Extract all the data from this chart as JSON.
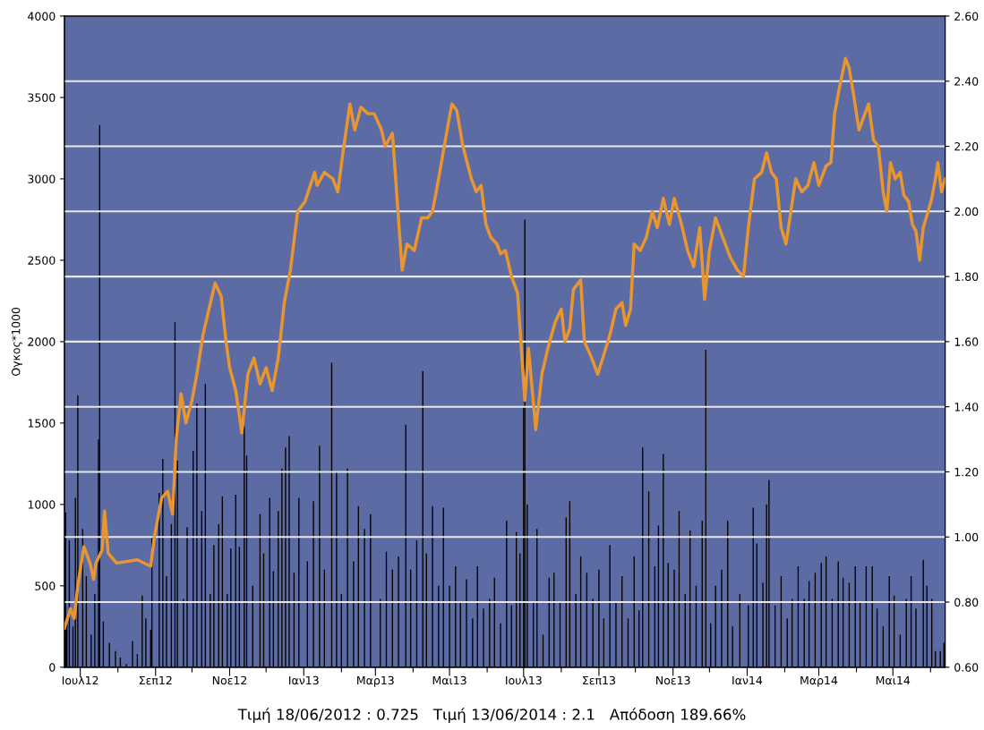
{
  "chart_data": {
    "type": "bar",
    "ylabel": "Ογκος*1000",
    "annotations": [
      "Τιμή 18/06/2012 : 0.725   Τιμή 13/06/2014 : 2.1   Απόδοση 189.66%"
    ],
    "xlim": [
      "2012-06-18",
      "2014-06-13"
    ],
    "xticks": [
      {
        "value": "2012-07-01",
        "label": "Ιουλ12"
      },
      {
        "value": "2012-08-01",
        "label": null
      },
      {
        "value": "2012-09-01",
        "label": "Σεπ12"
      },
      {
        "value": "2012-10-01",
        "label": null
      },
      {
        "value": "2012-11-01",
        "label": "Νοε12"
      },
      {
        "value": "2012-12-01",
        "label": null
      },
      {
        "value": "2013-01-01",
        "label": "Ιαν13"
      },
      {
        "value": "2013-02-01",
        "label": null
      },
      {
        "value": "2013-03-01",
        "label": "Μαρ13"
      },
      {
        "value": "2013-04-01",
        "label": null
      },
      {
        "value": "2013-05-01",
        "label": "Μαι13"
      },
      {
        "value": "2013-06-01",
        "label": null
      },
      {
        "value": "2013-07-01",
        "label": "Ιουλ13"
      },
      {
        "value": "2013-08-01",
        "label": null
      },
      {
        "value": "2013-09-01",
        "label": "Σεπ13"
      },
      {
        "value": "2013-10-01",
        "label": null
      },
      {
        "value": "2013-11-01",
        "label": "Νοε13"
      },
      {
        "value": "2013-12-01",
        "label": null
      },
      {
        "value": "2014-01-01",
        "label": "Ιαν14"
      },
      {
        "value": "2014-02-01",
        "label": null
      },
      {
        "value": "2014-03-01",
        "label": "Μαρ14"
      },
      {
        "value": "2014-04-01",
        "label": null
      },
      {
        "value": "2014-05-01",
        "label": "Μαι14"
      },
      {
        "value": "2014-06-01",
        "label": null
      }
    ],
    "ylim": [
      0,
      4000
    ],
    "yticks": [
      0,
      500,
      1000,
      1500,
      2000,
      2500,
      3000,
      3500,
      4000
    ],
    "y2lim": [
      0.6,
      2.6
    ],
    "y2ticks": [
      {
        "value": 0.6,
        "label": "0.60"
      },
      {
        "value": 0.8,
        "label": "0.80"
      },
      {
        "value": 1.0,
        "label": "1.00"
      },
      {
        "value": 1.2,
        "label": "1.20"
      },
      {
        "value": 1.4,
        "label": "1.40"
      },
      {
        "value": 1.6,
        "label": "1.60"
      },
      {
        "value": 1.8,
        "label": "1.80"
      },
      {
        "value": 2.0,
        "label": "2.00"
      },
      {
        "value": 2.2,
        "label": "2.20"
      },
      {
        "value": 2.4,
        "label": "2.40"
      },
      {
        "value": 2.6,
        "label": "2.60"
      }
    ],
    "grid": "y2",
    "series": [
      {
        "color": "#000000",
        "x": [
          "2012-06-19",
          "2012-06-20",
          "2012-06-22",
          "2012-06-25",
          "2012-06-27",
          "2012-06-29",
          "2012-07-03",
          "2012-07-06",
          "2012-07-10",
          "2012-07-13",
          "2012-07-16",
          "2012-07-17",
          "2012-07-20",
          "2012-07-25",
          "2012-07-30",
          "2012-08-03",
          "2012-08-08",
          "2012-08-13",
          "2012-08-17",
          "2012-08-21",
          "2012-08-24",
          "2012-08-28",
          "2012-08-29",
          "2012-09-04",
          "2012-09-07",
          "2012-09-10",
          "2012-09-14",
          "2012-09-17",
          "2012-09-19",
          "2012-09-24",
          "2012-09-27",
          "2012-10-02",
          "2012-10-05",
          "2012-10-09",
          "2012-10-12",
          "2012-10-16",
          "2012-10-19",
          "2012-10-23",
          "2012-10-26",
          "2012-10-30",
          "2012-11-02",
          "2012-11-06",
          "2012-11-09",
          "2012-11-13",
          "2012-11-15",
          "2012-11-20",
          "2012-11-26",
          "2012-11-29",
          "2012-12-04",
          "2012-12-07",
          "2012-12-11",
          "2012-12-14",
          "2012-12-17",
          "2012-12-20",
          "2012-12-24",
          "2012-12-28",
          "2013-01-04",
          "2013-01-09",
          "2013-01-14",
          "2013-01-18",
          "2013-01-24",
          "2013-01-28",
          "2013-02-01",
          "2013-02-06",
          "2013-02-11",
          "2013-02-15",
          "2013-02-20",
          "2013-02-25",
          "2013-03-05",
          "2013-03-10",
          "2013-03-15",
          "2013-03-20",
          "2013-03-26",
          "2013-03-30",
          "2013-04-04",
          "2013-04-09",
          "2013-04-12",
          "2013-04-17",
          "2013-04-22",
          "2013-04-26",
          "2013-05-01",
          "2013-05-06",
          "2013-05-10",
          "2013-05-15",
          "2013-05-20",
          "2013-05-24",
          "2013-05-29",
          "2013-06-03",
          "2013-06-07",
          "2013-06-12",
          "2013-06-17",
          "2013-06-21",
          "2013-06-25",
          "2013-06-28",
          "2013-07-01",
          "2013-07-02",
          "2013-07-04",
          "2013-07-09",
          "2013-07-12",
          "2013-07-17",
          "2013-07-22",
          "2013-07-26",
          "2013-07-31",
          "2013-08-05",
          "2013-08-08",
          "2013-08-13",
          "2013-08-17",
          "2013-08-22",
          "2013-08-27",
          "2013-09-01",
          "2013-09-05",
          "2013-09-10",
          "2013-09-15",
          "2013-09-20",
          "2013-09-25",
          "2013-09-30",
          "2013-10-04",
          "2013-10-07",
          "2013-10-12",
          "2013-10-17",
          "2013-10-20",
          "2013-10-24",
          "2013-10-28",
          "2013-11-02",
          "2013-11-06",
          "2013-11-11",
          "2013-11-15",
          "2013-11-20",
          "2013-11-25",
          "2013-11-28",
          "2013-12-02",
          "2013-12-06",
          "2013-12-11",
          "2013-12-16",
          "2013-12-20",
          "2013-12-26",
          "2014-01-02",
          "2014-01-06",
          "2014-01-09",
          "2014-01-14",
          "2014-01-17",
          "2014-01-19",
          "2014-01-24",
          "2014-01-29",
          "2014-02-03",
          "2014-02-07",
          "2014-02-12",
          "2014-02-17",
          "2014-02-21",
          "2014-02-26",
          "2014-03-03",
          "2014-03-07",
          "2014-03-12",
          "2014-03-17",
          "2014-03-21",
          "2014-03-26",
          "2014-03-31",
          "2014-04-04",
          "2014-04-09",
          "2014-04-14",
          "2014-04-18",
          "2014-04-23",
          "2014-04-28",
          "2014-05-02",
          "2014-05-07",
          "2014-05-12",
          "2014-05-16",
          "2014-05-20",
          "2014-05-26",
          "2014-05-29",
          "2014-06-02",
          "2014-06-05",
          "2014-06-09",
          "2014-06-12"
        ],
        "values": [
          950,
          300,
          780,
          250,
          1040,
          1670,
          850,
          560,
          200,
          450,
          1400,
          3330,
          280,
          150,
          100,
          60,
          20,
          160,
          80,
          440,
          300,
          230,
          800,
          1070,
          1280,
          560,
          880,
          2120,
          1270,
          420,
          860,
          1330,
          1620,
          960,
          1740,
          450,
          750,
          880,
          1050,
          450,
          730,
          1060,
          740,
          1480,
          1300,
          500,
          940,
          700,
          1040,
          590,
          960,
          1220,
          1350,
          1420,
          580,
          1040,
          650,
          1020,
          1360,
          600,
          1870,
          1200,
          450,
          1220,
          650,
          990,
          850,
          940,
          420,
          710,
          600,
          680,
          1490,
          600,
          780,
          1820,
          700,
          990,
          500,
          980,
          500,
          620,
          400,
          540,
          300,
          620,
          360,
          420,
          550,
          270,
          900,
          380,
          830,
          700,
          1600,
          2750,
          1000,
          400,
          850,
          200,
          550,
          580,
          400,
          920,
          1020,
          450,
          680,
          580,
          420,
          600,
          300,
          750,
          400,
          560,
          300,
          680,
          350,
          1350,
          1080,
          620,
          870,
          1310,
          640,
          600,
          960,
          450,
          840,
          500,
          900,
          1950,
          270,
          500,
          600,
          900,
          250,
          450,
          380,
          980,
          760,
          520,
          1000,
          1150,
          380,
          560,
          300,
          420,
          620,
          420,
          530,
          580,
          640,
          680,
          420,
          650,
          550,
          520,
          620,
          400,
          620,
          620,
          360,
          250,
          560,
          440,
          200,
          420,
          560,
          360,
          660,
          500,
          420,
          100,
          100,
          150
        ]
      },
      {
        "type": "line",
        "axis": "y2",
        "color": "#e8962f",
        "x": [
          "2012-06-18",
          "2012-06-23",
          "2012-06-26",
          "2012-06-29",
          "2012-07-04",
          "2012-07-09",
          "2012-07-12",
          "2012-07-14",
          "2012-07-19",
          "2012-07-21",
          "2012-07-24",
          "2012-07-31",
          "2012-08-17",
          "2012-08-28",
          "2012-08-31",
          "2012-09-06",
          "2012-09-11",
          "2012-09-15",
          "2012-09-18",
          "2012-09-22",
          "2012-09-26",
          "2012-10-01",
          "2012-10-05",
          "2012-10-10",
          "2012-10-15",
          "2012-10-20",
          "2012-10-25",
          "2012-10-29",
          "2012-11-01",
          "2012-11-06",
          "2012-11-11",
          "2012-11-16",
          "2012-11-21",
          "2012-11-26",
          "2012-12-01",
          "2012-12-06",
          "2012-12-11",
          "2012-12-16",
          "2012-12-21",
          "2012-12-27",
          "2013-01-02",
          "2013-01-10",
          "2013-01-12",
          "2013-01-18",
          "2013-01-25",
          "2013-01-29",
          "2013-02-03",
          "2013-02-08",
          "2013-02-12",
          "2013-02-17",
          "2013-02-23",
          "2013-02-28",
          "2013-03-06",
          "2013-03-09",
          "2013-03-15",
          "2013-03-19",
          "2013-03-23",
          "2013-03-27",
          "2013-04-02",
          "2013-04-08",
          "2013-04-13",
          "2013-04-17",
          "2013-04-22",
          "2013-04-29",
          "2013-05-03",
          "2013-05-07",
          "2013-05-12",
          "2013-05-19",
          "2013-05-23",
          "2013-05-27",
          "2013-05-31",
          "2013-06-04",
          "2013-06-09",
          "2013-06-12",
          "2013-06-16",
          "2013-06-21",
          "2013-06-26",
          "2013-07-02",
          "2013-07-05",
          "2013-07-11",
          "2013-07-16",
          "2013-07-21",
          "2013-07-27",
          "2013-08-01",
          "2013-08-04",
          "2013-08-08",
          "2013-08-11",
          "2013-08-17",
          "2013-08-20",
          "2013-08-26",
          "2013-08-31",
          "2013-09-05",
          "2013-09-10",
          "2013-09-15",
          "2013-09-20",
          "2013-09-23",
          "2013-09-27",
          "2013-09-30",
          "2013-10-05",
          "2013-10-10",
          "2013-10-15",
          "2013-10-19",
          "2013-10-24",
          "2013-10-29",
          "2013-11-02",
          "2013-11-08",
          "2013-11-13",
          "2013-11-18",
          "2013-11-23",
          "2013-11-27",
          "2013-12-01",
          "2013-12-06",
          "2013-12-12",
          "2013-12-18",
          "2013-12-24",
          "2013-12-29",
          "2014-01-02",
          "2014-01-07",
          "2014-01-13",
          "2014-01-17",
          "2014-01-21",
          "2014-01-25",
          "2014-01-29",
          "2014-02-02",
          "2014-02-06",
          "2014-02-10",
          "2014-02-15",
          "2014-02-20",
          "2014-02-25",
          "2014-03-01",
          "2014-03-07",
          "2014-03-11",
          "2014-03-14",
          "2014-03-18",
          "2014-03-23",
          "2014-03-26",
          "2014-03-30",
          "2014-04-03",
          "2014-04-08",
          "2014-04-11",
          "2014-04-15",
          "2014-04-19",
          "2014-04-23",
          "2014-04-26",
          "2014-04-29",
          "2014-05-03",
          "2014-05-07",
          "2014-05-10",
          "2014-05-14",
          "2014-05-17",
          "2014-05-20",
          "2014-05-23",
          "2014-05-26",
          "2014-05-30",
          "2014-06-02",
          "2014-06-05",
          "2014-06-07",
          "2014-06-10",
          "2014-06-13"
        ],
        "values": [
          0.72,
          0.78,
          0.75,
          0.85,
          0.97,
          0.92,
          0.87,
          0.92,
          0.96,
          1.08,
          0.95,
          0.92,
          0.93,
          0.91,
          1.0,
          1.12,
          1.14,
          1.07,
          1.3,
          1.44,
          1.35,
          1.42,
          1.5,
          1.62,
          1.7,
          1.78,
          1.74,
          1.6,
          1.52,
          1.45,
          1.32,
          1.5,
          1.55,
          1.47,
          1.52,
          1.45,
          1.55,
          1.72,
          1.82,
          2.0,
          2.03,
          2.12,
          2.08,
          2.12,
          2.1,
          2.06,
          2.2,
          2.33,
          2.25,
          2.32,
          2.3,
          2.3,
          2.25,
          2.2,
          2.24,
          2.03,
          1.82,
          1.9,
          1.88,
          1.98,
          1.98,
          2.0,
          2.1,
          2.25,
          2.33,
          2.31,
          2.2,
          2.1,
          2.06,
          2.08,
          1.96,
          1.92,
          1.9,
          1.87,
          1.88,
          1.8,
          1.75,
          1.42,
          1.58,
          1.33,
          1.5,
          1.58,
          1.66,
          1.7,
          1.6,
          1.64,
          1.76,
          1.79,
          1.6,
          1.55,
          1.5,
          1.56,
          1.62,
          1.7,
          1.72,
          1.65,
          1.7,
          1.9,
          1.88,
          1.92,
          2.0,
          1.95,
          2.04,
          1.96,
          2.04,
          1.96,
          1.88,
          1.83,
          1.95,
          1.73,
          1.88,
          1.98,
          1.92,
          1.86,
          1.82,
          1.8,
          1.95,
          2.1,
          2.12,
          2.18,
          2.12,
          2.1,
          1.95,
          1.9,
          2.0,
          2.1,
          2.06,
          2.08,
          2.15,
          2.08,
          2.14,
          2.15,
          2.3,
          2.38,
          2.47,
          2.44,
          2.35,
          2.25,
          2.3,
          2.33,
          2.22,
          2.2,
          2.06,
          2.0,
          2.15,
          2.1,
          2.12,
          2.05,
          2.03,
          1.96,
          1.94,
          1.85,
          1.95,
          2.0,
          2.04,
          2.1,
          2.15,
          2.06,
          2.1
        ]
      }
    ]
  }
}
